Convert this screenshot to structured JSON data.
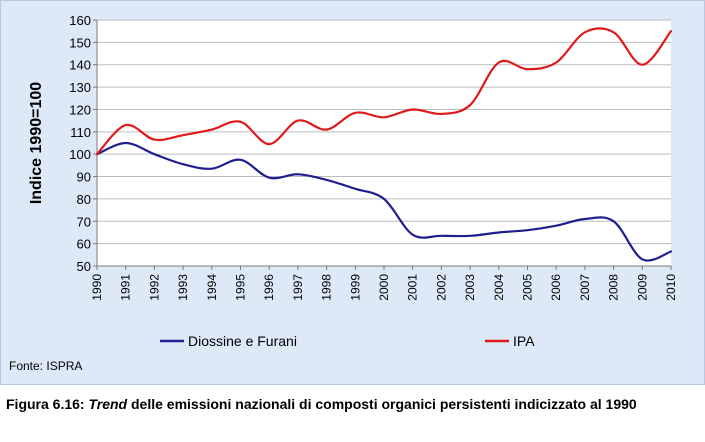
{
  "chart_data": {
    "type": "line",
    "ylabel": "Indice 1990=100",
    "xlabel": "",
    "ylim": [
      50,
      160
    ],
    "yticks": [
      50,
      60,
      70,
      80,
      90,
      100,
      110,
      120,
      130,
      140,
      150,
      160
    ],
    "x": [
      "1990",
      "1991",
      "1992",
      "1993",
      "1994",
      "1995",
      "1996",
      "1997",
      "1998",
      "1999",
      "2000",
      "2001",
      "2002",
      "2003",
      "2004",
      "2005",
      "2006",
      "2007",
      "2008",
      "2009",
      "2010"
    ],
    "grid": "horizontal",
    "legend": "bottom",
    "series": [
      {
        "name": "Diossine e Furani",
        "color": "#1f1f8f",
        "values": [
          100,
          105,
          100,
          95.5,
          93.5,
          97.5,
          89.5,
          91,
          88.5,
          84.5,
          80,
          64,
          63.5,
          63.5,
          65,
          66,
          68,
          71,
          70,
          53,
          56.5
        ]
      },
      {
        "name": "IPA",
        "color": "#e01a1a",
        "values": [
          100,
          113,
          106.5,
          108.5,
          111,
          114.5,
          104.5,
          115,
          111,
          118.5,
          116.5,
          120,
          118,
          122,
          141,
          138,
          141,
          154.5,
          154.5,
          140,
          155
        ]
      }
    ]
  },
  "source": "Fonte: ISPRA",
  "caption": {
    "prefix": "Figura 6.16: ",
    "emphasis": "Trend",
    "rest": " delle emissioni nazionali di composti organici persistenti indicizzato al 1990"
  }
}
